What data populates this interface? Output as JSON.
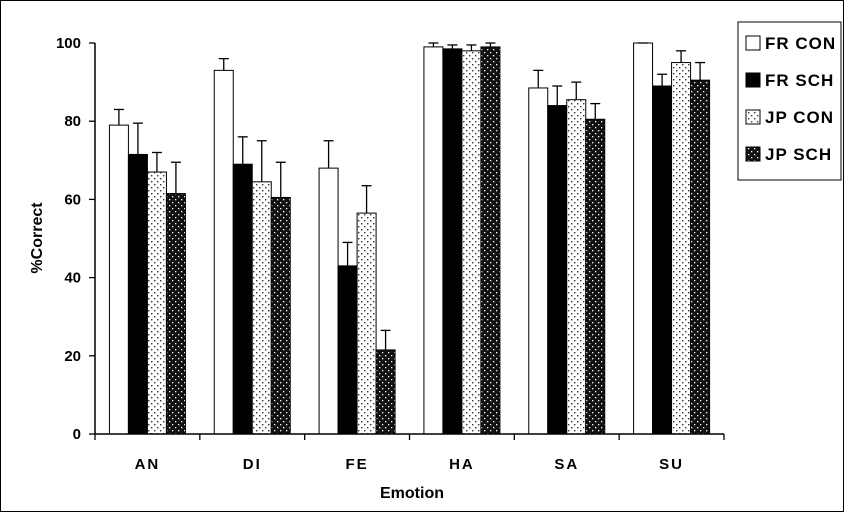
{
  "chart_data": {
    "type": "bar",
    "categories": [
      "AN",
      "DI",
      "FE",
      "HA",
      "SA",
      "SU"
    ],
    "series": [
      {
        "name": "FR CON",
        "values": [
          79,
          93,
          68,
          99,
          88.5,
          100
        ],
        "errors": [
          4,
          3,
          7,
          1,
          4.5,
          0
        ],
        "pattern": "white"
      },
      {
        "name": "FR SCH",
        "values": [
          71.5,
          69,
          43,
          98.5,
          84,
          89
        ],
        "errors": [
          8,
          7,
          6,
          1,
          5,
          3
        ],
        "pattern": "black"
      },
      {
        "name": "JP CON",
        "values": [
          67,
          64.5,
          56.5,
          98,
          85.5,
          95
        ],
        "errors": [
          5,
          10.5,
          7,
          1.5,
          4.5,
          3
        ],
        "pattern": "light-dots"
      },
      {
        "name": "JP SCH",
        "values": [
          61.5,
          60.5,
          21.5,
          99,
          80.5,
          90.5
        ],
        "errors": [
          8,
          9,
          5,
          1,
          4,
          4.5
        ],
        "pattern": "dark-dots"
      }
    ],
    "xlabel": "Emotion",
    "ylabel": "%Correct",
    "ylim": [
      0,
      100
    ],
    "yticks": [
      "0",
      "20",
      "40",
      "60",
      "80",
      "100"
    ],
    "grid": false,
    "legend_position": "top-right"
  }
}
